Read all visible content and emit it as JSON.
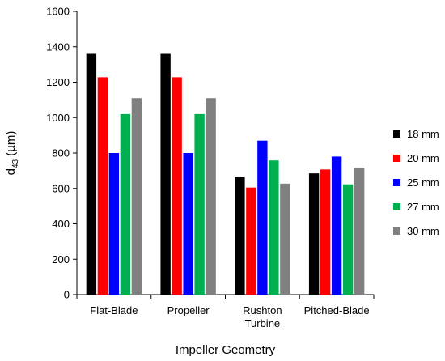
{
  "chart_data": {
    "type": "bar",
    "title": "",
    "xlabel": "Impeller Geometry",
    "ylabel_main": "d",
    "ylabel_sub": "43",
    "ylabel_unit": " (µm)",
    "ylim": [
      0,
      1600
    ],
    "yticks": [
      0,
      200,
      400,
      600,
      800,
      1000,
      1200,
      1400,
      1600
    ],
    "categories": [
      [
        "Flat-Blade"
      ],
      [
        "Propeller"
      ],
      [
        "Rushton",
        "Turbine"
      ],
      [
        "Pitched-Blade"
      ]
    ],
    "series": [
      {
        "name": "18 mm",
        "color": "#000000",
        "values": [
          1360,
          1360,
          663,
          685
        ]
      },
      {
        "name": "20 mm",
        "color": "#ff0000",
        "values": [
          1228,
          1228,
          605,
          707
        ]
      },
      {
        "name": "25 mm",
        "color": "#0000ff",
        "values": [
          800,
          800,
          870,
          780
        ]
      },
      {
        "name": "27 mm",
        "color": "#00b050",
        "values": [
          1020,
          1020,
          758,
          623
        ]
      },
      {
        "name": "30 mm",
        "color": "#808080",
        "values": [
          1110,
          1110,
          627,
          718
        ]
      }
    ],
    "legend_position": "right",
    "grid": false
  }
}
